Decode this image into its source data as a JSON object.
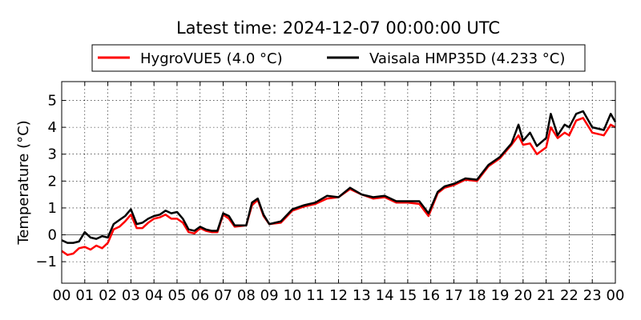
{
  "chart_data": {
    "type": "line",
    "title": "Latest time: 2024-12-07 00:00:00 UTC",
    "ylabel": "Temperature (°C)",
    "xlabel": "",
    "xlim": [
      0,
      24
    ],
    "ylim": [
      -1.8,
      5.7
    ],
    "grid": true,
    "legend_placement": "top-center",
    "x_tick_labels": [
      "00",
      "01",
      "02",
      "03",
      "04",
      "05",
      "06",
      "07",
      "08",
      "09",
      "10",
      "11",
      "12",
      "13",
      "14",
      "15",
      "16",
      "17",
      "18",
      "19",
      "20",
      "21",
      "22",
      "23",
      "00"
    ],
    "y_ticks": [
      -1,
      0,
      1,
      2,
      3,
      4,
      5
    ],
    "x": [
      0,
      0.25,
      0.5,
      0.75,
      1,
      1.25,
      1.5,
      1.75,
      2,
      2.25,
      2.5,
      2.75,
      3,
      3.25,
      3.5,
      3.75,
      4,
      4.25,
      4.5,
      4.75,
      5,
      5.25,
      5.5,
      5.75,
      6,
      6.25,
      6.5,
      6.75,
      7,
      7.25,
      7.5,
      8,
      8.25,
      8.5,
      8.75,
      9,
      9.5,
      10,
      10.5,
      11,
      11.5,
      12,
      12.5,
      13,
      13.5,
      14,
      14.5,
      15,
      15.5,
      15.9,
      16.3,
      16.6,
      17,
      17.5,
      18,
      18.5,
      19,
      19.5,
      19.8,
      20,
      20.3,
      20.6,
      21,
      21.2,
      21.5,
      21.8,
      22,
      22.3,
      22.6,
      23,
      23.5,
      23.8,
      24
    ],
    "series": [
      {
        "name": "HygroVUE5 (4.0 °C)",
        "color": "#ff0000",
        "values": [
          -0.6,
          -0.75,
          -0.7,
          -0.5,
          -0.45,
          -0.55,
          -0.4,
          -0.5,
          -0.3,
          0.2,
          0.3,
          0.5,
          0.75,
          0.25,
          0.25,
          0.45,
          0.6,
          0.65,
          0.75,
          0.6,
          0.6,
          0.45,
          0.1,
          0.05,
          0.25,
          0.15,
          0.1,
          0.1,
          0.75,
          0.6,
          0.3,
          0.35,
          1.1,
          1.3,
          0.7,
          0.4,
          0.45,
          0.9,
          1.05,
          1.15,
          1.35,
          1.4,
          1.7,
          1.5,
          1.35,
          1.4,
          1.2,
          1.2,
          1.15,
          0.7,
          1.55,
          1.75,
          1.85,
          2.05,
          2.0,
          2.55,
          2.85,
          3.35,
          3.7,
          3.35,
          3.4,
          3.0,
          3.25,
          4.0,
          3.6,
          3.8,
          3.7,
          4.25,
          4.35,
          3.8,
          3.7,
          4.1,
          4.0
        ]
      },
      {
        "name": "Vaisala HMP35D (4.233 °C)",
        "color": "#000000",
        "values": [
          -0.2,
          -0.3,
          -0.3,
          -0.25,
          0.1,
          -0.1,
          -0.15,
          -0.05,
          -0.1,
          0.4,
          0.55,
          0.7,
          0.95,
          0.4,
          0.45,
          0.6,
          0.7,
          0.75,
          0.9,
          0.8,
          0.85,
          0.6,
          0.2,
          0.15,
          0.3,
          0.2,
          0.15,
          0.15,
          0.8,
          0.7,
          0.35,
          0.35,
          1.2,
          1.35,
          0.75,
          0.4,
          0.5,
          0.95,
          1.1,
          1.2,
          1.45,
          1.4,
          1.75,
          1.5,
          1.4,
          1.45,
          1.25,
          1.25,
          1.25,
          0.8,
          1.6,
          1.8,
          1.9,
          2.1,
          2.05,
          2.6,
          2.9,
          3.4,
          4.1,
          3.5,
          3.8,
          3.3,
          3.6,
          4.5,
          3.7,
          4.1,
          4.0,
          4.5,
          4.6,
          4.0,
          3.9,
          4.5,
          4.2
        ]
      }
    ]
  }
}
